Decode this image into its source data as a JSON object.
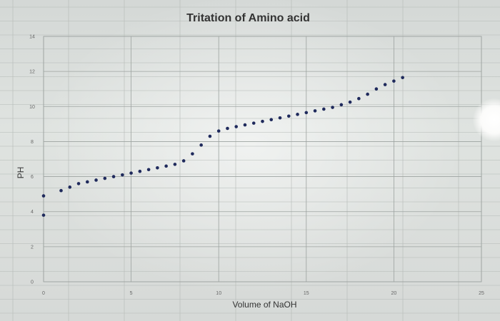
{
  "chart_data": {
    "type": "scatter",
    "title": "Tritation of Amino acid",
    "xlabel": "Volume of NaOH",
    "ylabel": "PH",
    "xlim": [
      0,
      25
    ],
    "ylim": [
      0,
      14
    ],
    "xticks": [
      0,
      5,
      10,
      15,
      20,
      25
    ],
    "yticks": [
      0,
      2,
      4,
      6,
      8,
      10,
      12,
      14
    ],
    "grid": true,
    "marker_color": "#1f2a5c",
    "series": [
      {
        "x": [
          0,
          0,
          1,
          1.5,
          2,
          2.5,
          3,
          3.5,
          4,
          4.5,
          5,
          5.5,
          6,
          6.5,
          7,
          7.5,
          8,
          8.5,
          9,
          9.5,
          10,
          10.5,
          11,
          11.5,
          12,
          12.5,
          13,
          13.5,
          14,
          14.5,
          15,
          15.5,
          16,
          16.5,
          17,
          17.5,
          18,
          18.5,
          19,
          19.5,
          20,
          20.5
        ],
        "y": [
          3.8,
          4.9,
          5.2,
          5.4,
          5.6,
          5.7,
          5.8,
          5.9,
          6.0,
          6.1,
          6.2,
          6.3,
          6.4,
          6.5,
          6.6,
          6.7,
          6.9,
          7.3,
          7.8,
          8.3,
          8.6,
          8.75,
          8.85,
          8.95,
          9.05,
          9.15,
          9.25,
          9.35,
          9.45,
          9.55,
          9.65,
          9.75,
          9.85,
          9.95,
          10.1,
          10.25,
          10.45,
          10.7,
          11.0,
          11.25,
          11.45,
          11.65
        ]
      }
    ]
  }
}
